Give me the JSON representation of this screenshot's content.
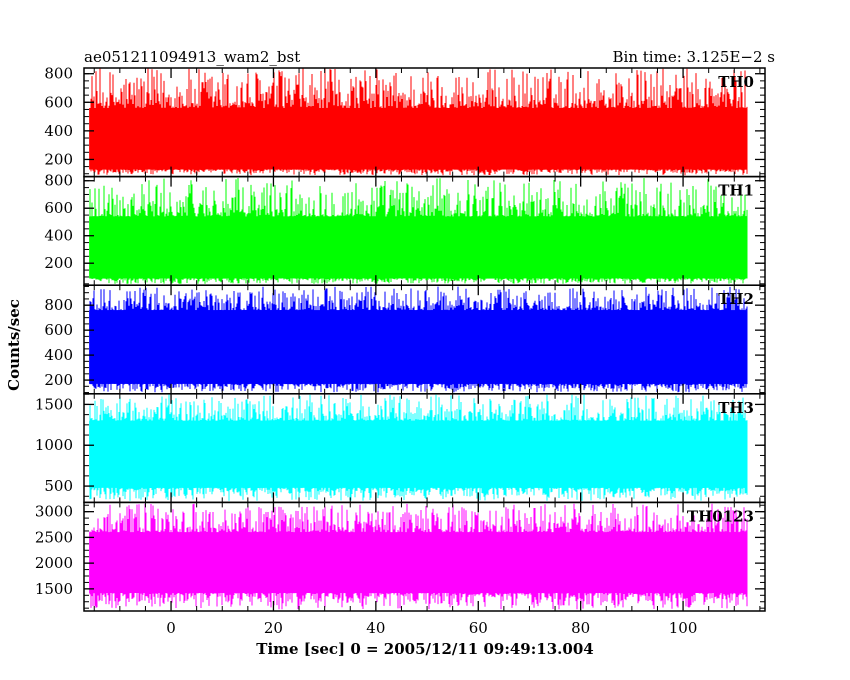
{
  "header": {
    "left_title": "ae051211094913_wam2_bst",
    "right_title": "Bin time: 3.125E−2 s"
  },
  "chart_data": {
    "type": "line",
    "x_axis": {
      "label": "Time [sec] 0 = 2005/12/11 09:49:13.004",
      "range": [
        -17,
        116
      ],
      "ticks": [
        0,
        20,
        40,
        60,
        80,
        100
      ],
      "data_range": [
        -16,
        112.5
      ],
      "grid": false
    },
    "y_axis_label": "Counts/sec",
    "panels": [
      {
        "name": "TH0",
        "color": "#ff0000",
        "ylim": [
          80,
          840
        ],
        "yticks": [
          200,
          400,
          600,
          800
        ],
        "typical": [
          130,
          560
        ],
        "min": 90,
        "max": 840,
        "mean": 340
      },
      {
        "name": "TH1",
        "color": "#00ff00",
        "ylim": [
          40,
          830
        ],
        "yticks": [
          200,
          400,
          600,
          800
        ],
        "typical": [
          90,
          540
        ],
        "min": 50,
        "max": 820,
        "mean": 310
      },
      {
        "name": "TH2",
        "color": "#0000ff",
        "ylim": [
          90,
          960
        ],
        "yticks": [
          200,
          400,
          600,
          800
        ],
        "typical": [
          170,
          760
        ],
        "min": 100,
        "max": 950,
        "mean": 460
      },
      {
        "name": "TH3",
        "color": "#00ffff",
        "ylim": [
          300,
          1630
        ],
        "yticks": [
          500,
          1000,
          1500
        ],
        "typical": [
          480,
          1300
        ],
        "min": 320,
        "max": 1620,
        "mean": 890
      },
      {
        "name": "TH0123",
        "color": "#ff00ff",
        "ylim": [
          1070,
          3180
        ],
        "yticks": [
          1500,
          2000,
          2500,
          3000
        ],
        "typical": [
          1420,
          2600
        ],
        "min": 1100,
        "max": 3160,
        "mean": 2010
      }
    ]
  }
}
